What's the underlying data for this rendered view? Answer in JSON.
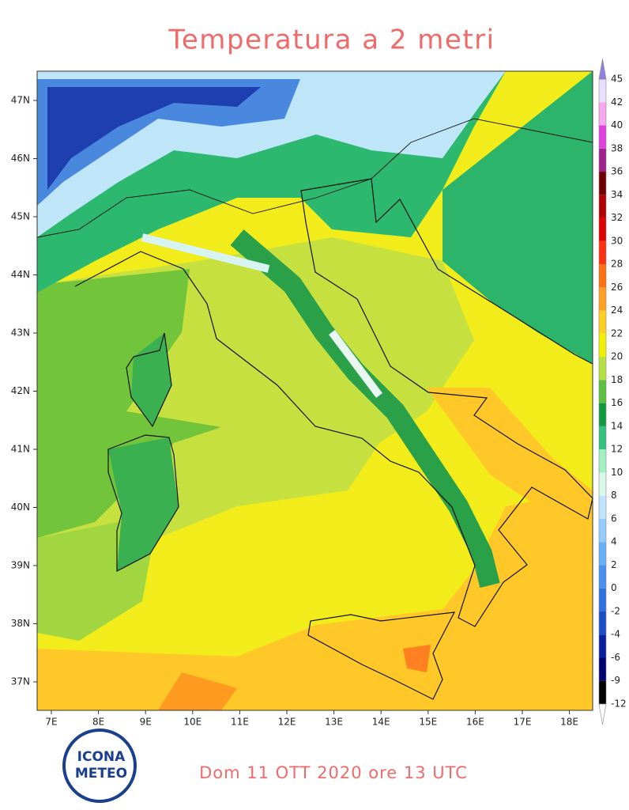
{
  "title": "Temperatura a 2 metri",
  "valid_time": "Dom 11 OTT 2020 ore 13 UTC",
  "longitude_labels": [
    "7E",
    "8E",
    "9E",
    "10E",
    "11E",
    "12E",
    "13E",
    "14E",
    "15E",
    "16E",
    "17E",
    "18E"
  ],
  "latitude_labels": [
    "47N",
    "46N",
    "45N",
    "44N",
    "43N",
    "42N",
    "41N",
    "40N",
    "39N",
    "38N",
    "37N"
  ],
  "colorbar": {
    "labels": [
      -12,
      -9,
      -6,
      -4,
      -2,
      0,
      2,
      4,
      6,
      8,
      10,
      12,
      14,
      16,
      18,
      20,
      22,
      24,
      26,
      28,
      30,
      32,
      34,
      36,
      38,
      40,
      42,
      45
    ],
    "colors": [
      "#000000",
      "#000070",
      "#0a1fa0",
      "#1d4fc8",
      "#3070e0",
      "#4a90f0",
      "#6ab0f8",
      "#94ccff",
      "#c0e4ff",
      "#d8f8e8",
      "#a0f0c0",
      "#30c080",
      "#109a40",
      "#5cc040",
      "#b4e040",
      "#f0f000",
      "#ffd020",
      "#ffa020",
      "#ff7010",
      "#ff3010",
      "#e00000",
      "#b00000",
      "#700000",
      "#a0208c",
      "#e040e0",
      "#f8a8f0",
      "#e8e0ff"
    ],
    "under_color": "#ffffff",
    "over_color": "#9080e0"
  },
  "logo": {
    "line1": "ICONA",
    "line2": "METEO"
  }
}
